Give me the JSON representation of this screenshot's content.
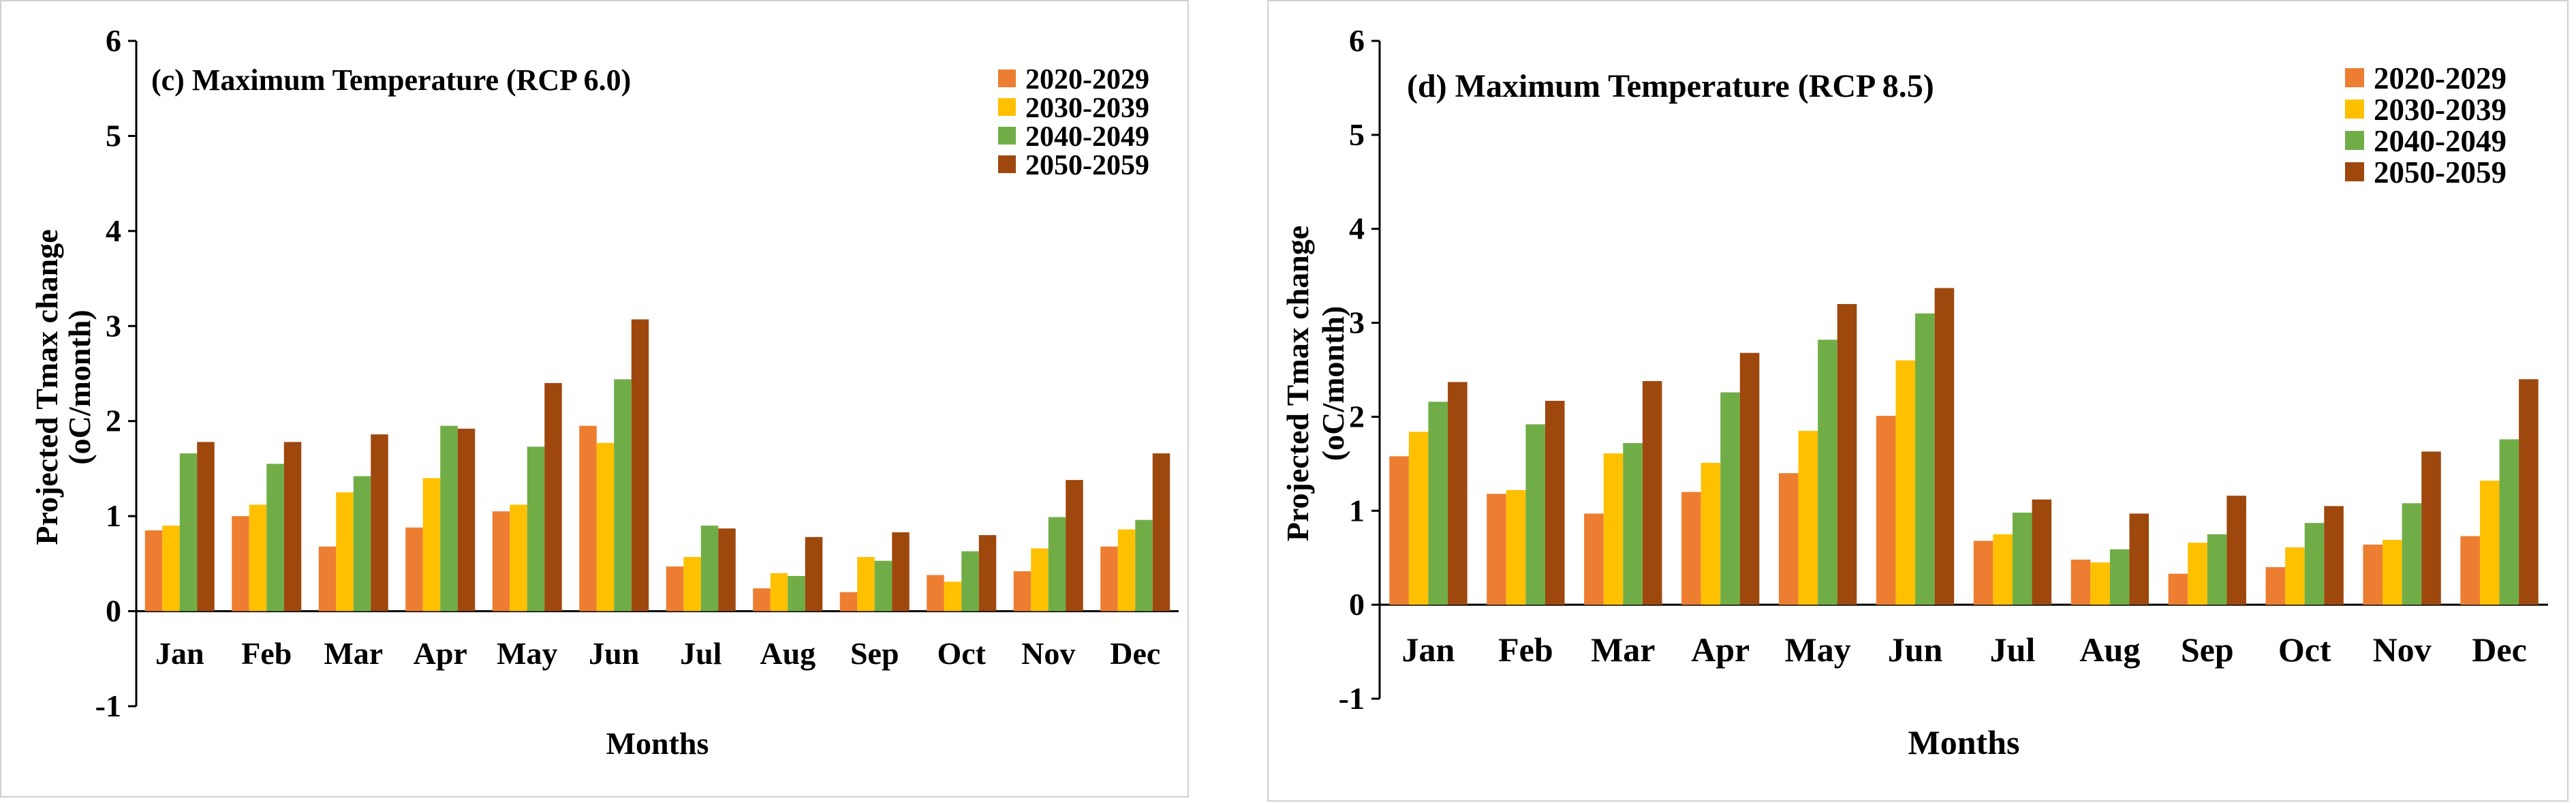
{
  "chart_data": [
    {
      "type": "bar",
      "title": "(c) Maximum Temperature (RCP 6.0)",
      "xlabel": "Months",
      "ylabel": [
        "Projected Tmax change",
        "(oC/month)"
      ],
      "ylim": [
        -1,
        6
      ],
      "yticks": [
        -1,
        0,
        1,
        2,
        3,
        4,
        5,
        6
      ],
      "grid": false,
      "legend": "top-right",
      "categories": [
        "Jan",
        "Feb",
        "Mar",
        "Apr",
        "May",
        "Jun",
        "Jul",
        "Aug",
        "Sep",
        "Oct",
        "Nov",
        "Dec"
      ],
      "series": [
        {
          "name": "2020-2029",
          "color": "#ED7D31",
          "values": [
            0.85,
            1.0,
            0.68,
            0.88,
            1.05,
            1.95,
            0.47,
            0.24,
            0.2,
            0.38,
            0.42,
            0.68
          ]
        },
        {
          "name": "2030-2039",
          "color": "#FFC000",
          "values": [
            0.9,
            1.12,
            1.25,
            1.4,
            1.12,
            1.77,
            0.57,
            0.4,
            0.57,
            0.31,
            0.66,
            0.86
          ]
        },
        {
          "name": "2040-2049",
          "color": "#70AD47",
          "values": [
            1.66,
            1.55,
            1.42,
            1.95,
            1.73,
            2.44,
            0.9,
            0.37,
            0.53,
            0.63,
            0.99,
            0.96
          ]
        },
        {
          "name": "2050-2059",
          "color": "#9E480E",
          "values": [
            1.78,
            1.78,
            1.86,
            1.92,
            2.4,
            3.07,
            0.87,
            0.78,
            0.83,
            0.8,
            1.38,
            1.66
          ]
        }
      ]
    },
    {
      "type": "bar",
      "title": "(d) Maximum Temperature (RCP 8.5)",
      "xlabel": "Months",
      "ylabel": [
        "Projected Tmax change",
        "(oC/month)"
      ],
      "ylim": [
        -1,
        6
      ],
      "yticks": [
        -1,
        0,
        1,
        2,
        3,
        4,
        5,
        6
      ],
      "grid": false,
      "legend": "top-right",
      "categories": [
        "Jan",
        "Feb",
        "Mar",
        "Apr",
        "May",
        "Jun",
        "Jul",
        "Aug",
        "Sep",
        "Oct",
        "Nov",
        "Dec"
      ],
      "series": [
        {
          "name": "2020-2029",
          "color": "#ED7D31",
          "values": [
            1.58,
            1.18,
            0.97,
            1.2,
            1.4,
            2.01,
            0.68,
            0.48,
            0.33,
            0.4,
            0.64,
            0.73
          ]
        },
        {
          "name": "2030-2039",
          "color": "#FFC000",
          "values": [
            1.84,
            1.22,
            1.61,
            1.51,
            1.85,
            2.6,
            0.75,
            0.45,
            0.66,
            0.61,
            0.69,
            1.32
          ]
        },
        {
          "name": "2040-2049",
          "color": "#70AD47",
          "values": [
            2.16,
            1.92,
            1.72,
            2.26,
            2.82,
            3.1,
            0.98,
            0.59,
            0.75,
            0.87,
            1.08,
            1.76
          ]
        },
        {
          "name": "2050-2059",
          "color": "#9E480E",
          "values": [
            2.37,
            2.17,
            2.38,
            2.68,
            3.2,
            3.37,
            1.12,
            0.97,
            1.16,
            1.05,
            1.63,
            2.4
          ]
        }
      ]
    }
  ]
}
